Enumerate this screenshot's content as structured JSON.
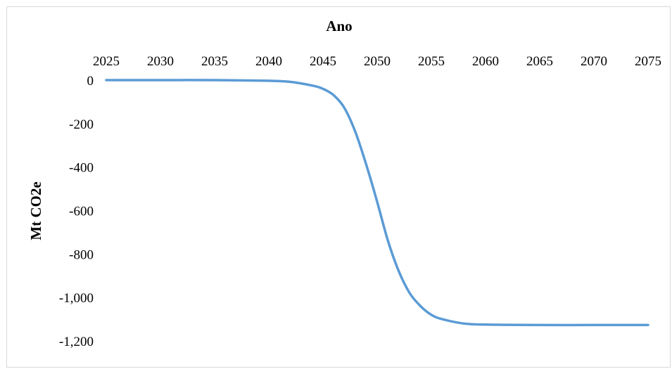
{
  "chart_data": {
    "type": "line",
    "xlabel": "Ano",
    "ylabel": "Mt CO2e",
    "x_axis_position": "top",
    "xlim": [
      2025,
      2075
    ],
    "ylim": [
      -1200,
      0
    ],
    "x_ticks": [
      2025,
      2030,
      2035,
      2040,
      2045,
      2050,
      2055,
      2060,
      2065,
      2070,
      2075
    ],
    "y_ticks": [
      0,
      -200,
      -400,
      -600,
      -800,
      -1000,
      -1200
    ],
    "x_tick_labels": [
      "2025",
      "2030",
      "2035",
      "2040",
      "2045",
      "2050",
      "2055",
      "2060",
      "2065",
      "2070",
      "2075"
    ],
    "y_tick_labels": [
      "0",
      "-200",
      "-400",
      "-600",
      "-800",
      "-1,000",
      "-1,200"
    ],
    "grid": false,
    "legend": "none",
    "series": [
      {
        "color": "#5b9bd5",
        "x": [
          2025,
          2030,
          2035,
          2040,
          2042,
          2044,
          2045,
          2046,
          2047,
          2048,
          2049,
          2050,
          2051,
          2052,
          2053,
          2054,
          2055,
          2056,
          2058,
          2060,
          2065,
          2070,
          2075
        ],
        "values": [
          0,
          0,
          0,
          -3,
          -8,
          -25,
          -40,
          -70,
          -130,
          -240,
          -390,
          -560,
          -740,
          -880,
          -980,
          -1040,
          -1080,
          -1100,
          -1120,
          -1125,
          -1127,
          -1127,
          -1127
        ]
      }
    ]
  }
}
